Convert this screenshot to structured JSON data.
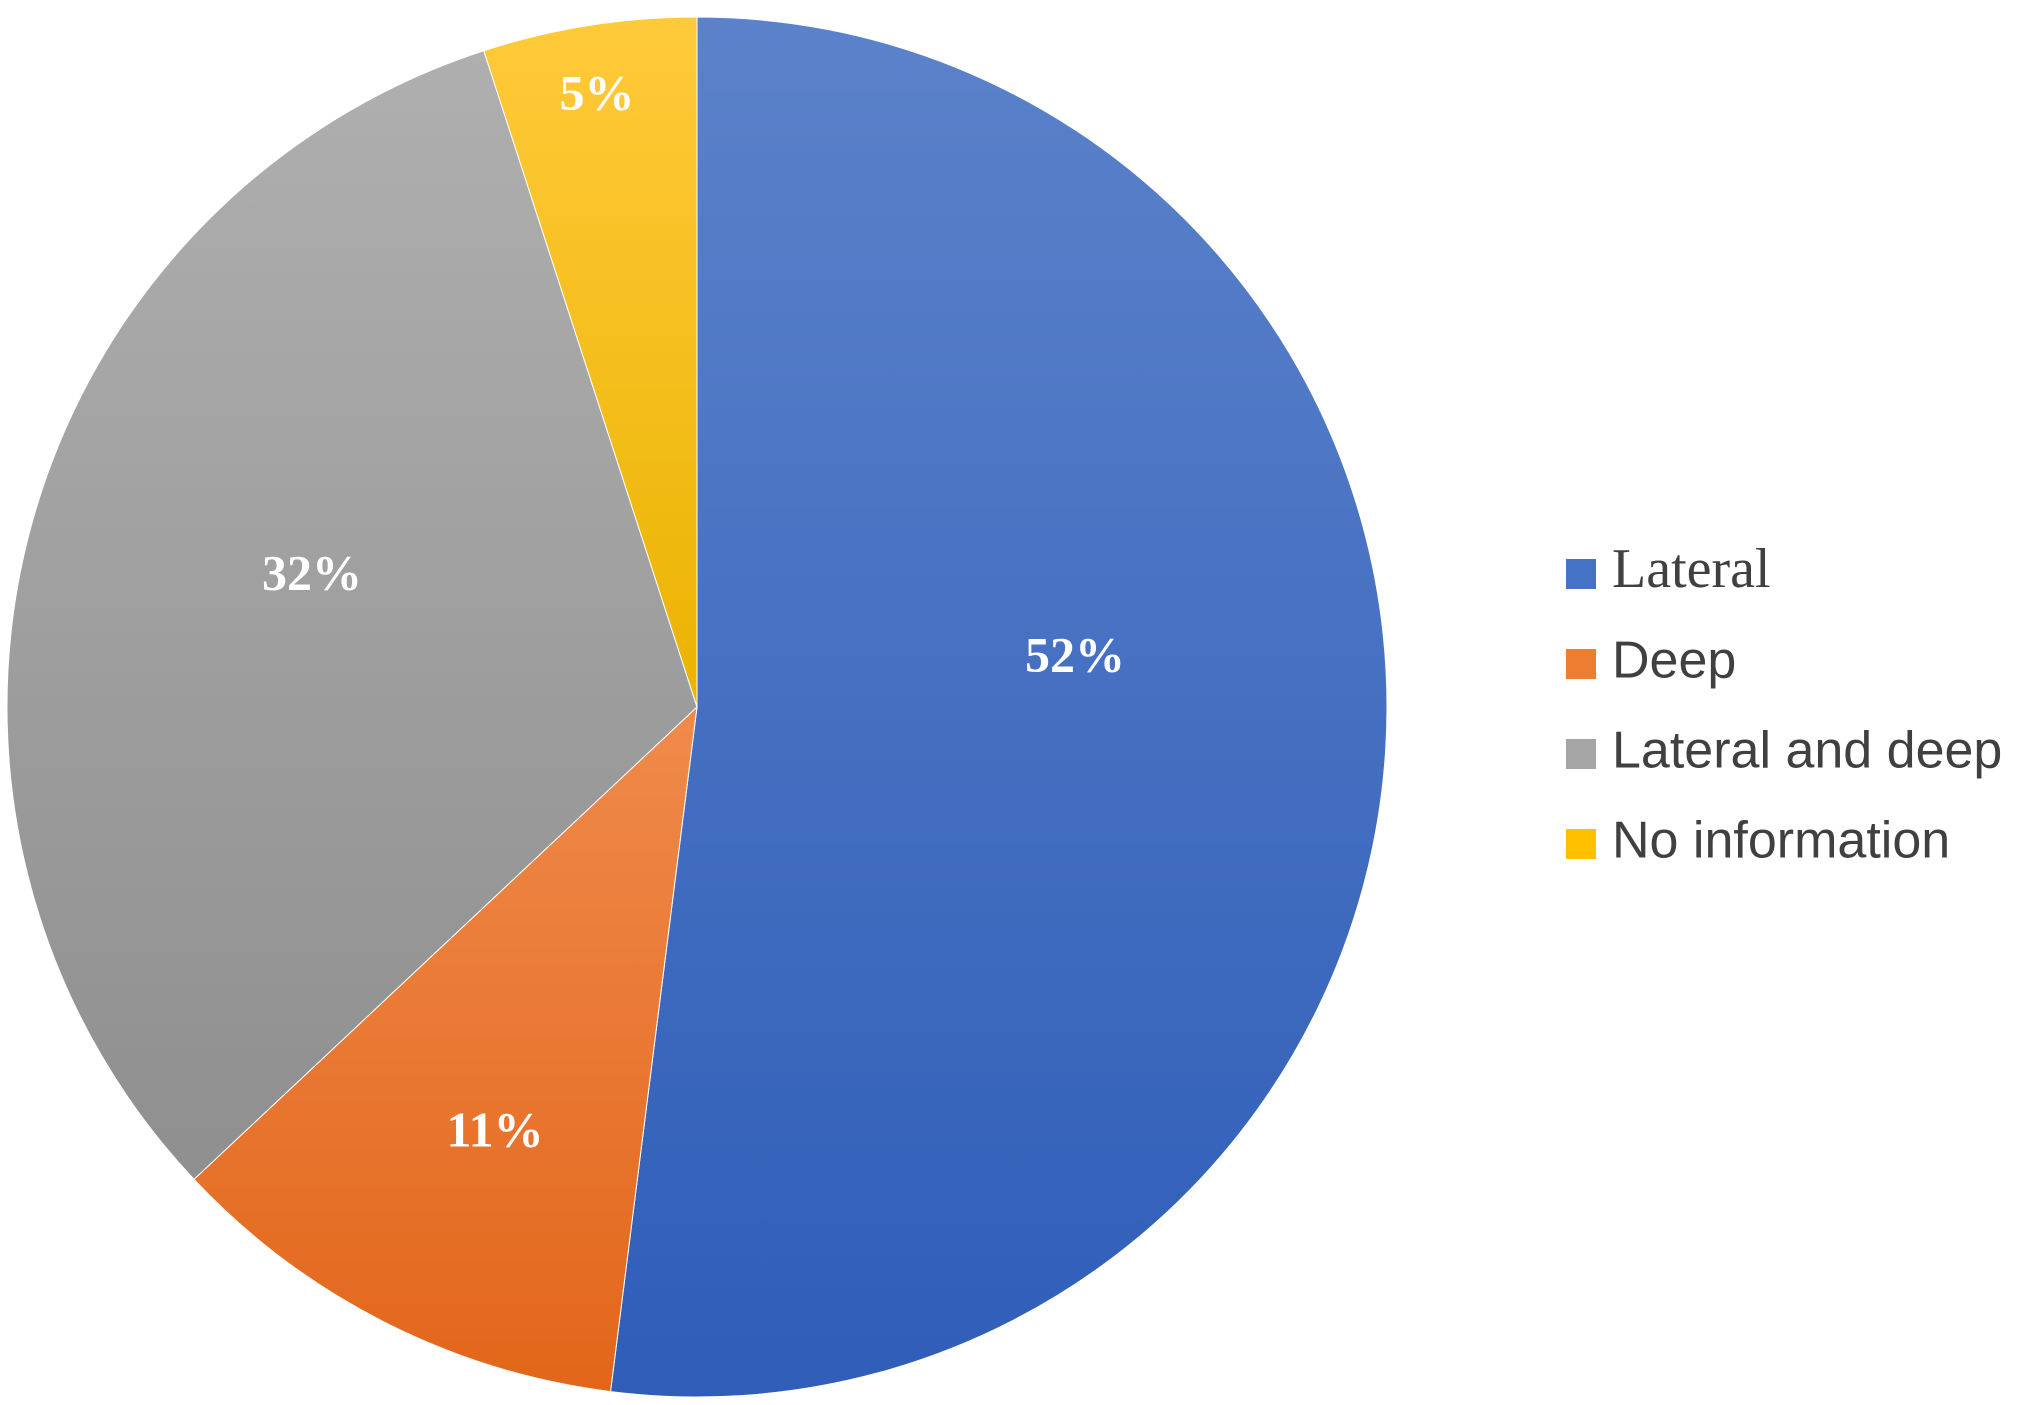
{
  "chart_data": {
    "type": "pie",
    "title": "",
    "start_angle_deg": 0,
    "direction": "clockwise",
    "slices": [
      {
        "label": "Lateral",
        "value": 52,
        "value_label": "52%",
        "color": "#4472C4",
        "color_light": "#5B82CA",
        "color_dark": "#2F5DB8"
      },
      {
        "label": "Deep",
        "value": 11,
        "value_label": "11%",
        "color": "#ED7D31",
        "color_light": "#F08A4B",
        "color_dark": "#E2661A"
      },
      {
        "label": "Lateral and deep",
        "value": 32,
        "value_label": "32%",
        "color": "#A5A5A5",
        "color_light": "#AFAFAF",
        "color_dark": "#8F8F8F"
      },
      {
        "label": "No information",
        "value": 5,
        "value_label": "5%",
        "color": "#FFC000",
        "color_light": "#FFCA3A",
        "color_dark": "#EBB300"
      }
    ],
    "legend": {
      "placement": "right",
      "entries": [
        "Lateral",
        "Deep",
        "Lateral and deep",
        "No information"
      ]
    }
  }
}
